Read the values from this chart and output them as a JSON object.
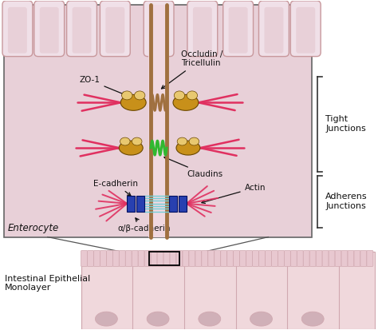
{
  "cell_bg": "#e8d0d8",
  "cell_bg_light": "#f0e0e8",
  "villi_outer": "#c8989c",
  "villi_inner_bg": "#e8d0d8",
  "junction_brown": "#a07040",
  "junction_pink_bg": "#f0d8e0",
  "zo1_gold": "#c8901a",
  "zo1_light": "#e8c870",
  "claudin_green": "#30b830",
  "actin_pink": "#e03060",
  "ecad_blue": "#2840b0",
  "cadherin_cyan": "#70d0d8",
  "white": "#ffffff",
  "black": "#111111",
  "bracket_color": "#333333",
  "border_color": "#666666",
  "label_tight": "Tight\nJunctions",
  "label_adherens": "Adherens\nJunctions",
  "label_zo1": "ZO-1",
  "label_occludin": "Occludin /\nTricellulin",
  "label_claudins": "Claudins",
  "label_ecadherin": "E-cadherin",
  "label_alphabeta": "α/β-cadherin",
  "label_actin": "Actin",
  "label_enterocyte": "Enterocyte",
  "label_intestinal": "Intestinal Epithelial\nMonolayer",
  "lower_cell_bg": "#f0d8dc",
  "lower_border": "#d0a8b0",
  "lower_nucleus": "#d0b0b8",
  "fig_width": 4.74,
  "fig_height": 4.13,
  "dpi": 100
}
